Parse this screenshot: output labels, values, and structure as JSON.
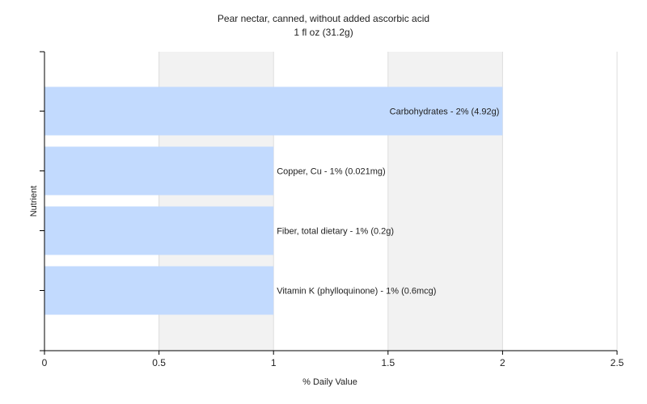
{
  "chart_data": {
    "type": "bar",
    "orientation": "horizontal",
    "title": "Pear nectar, canned, without added ascorbic acid",
    "subtitle": "1 fl oz (31.2g)",
    "xlabel": "% Daily Value",
    "ylabel": "Nutrient",
    "xlim": [
      0,
      2.5
    ],
    "x_ticks": [
      0,
      0.5,
      1,
      1.5,
      2,
      2.5
    ],
    "x_tick_labels": [
      "0",
      "0.5",
      "1",
      "1.5",
      "2",
      "2.5"
    ],
    "grid": "vertical",
    "legend": "none",
    "categories": [
      "Carbohydrates",
      "Copper, Cu",
      "Fiber, total dietary",
      "Vitamin K (phylloquinone)"
    ],
    "values": [
      2,
      1,
      1,
      1
    ],
    "data_labels": [
      "Carbohydrates - 2% (4.92g)",
      "Copper, Cu - 1% (0.021mg)",
      "Fiber, total dietary - 1% (0.2g)",
      "Vitamin K (phylloquinone) - 1% (0.6mcg)"
    ],
    "colors": {
      "bar": "#c2dafe",
      "band_light": "#ffffff",
      "band_dark": "#f2f2f2",
      "gridline": "#dddddd",
      "axis": "#000000",
      "text": "#222222"
    }
  }
}
